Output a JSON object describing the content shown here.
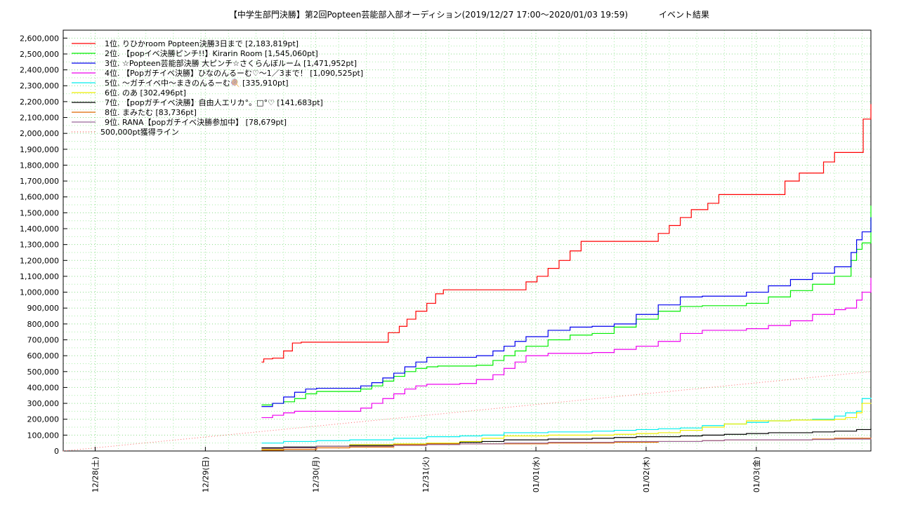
{
  "chart_data": {
    "type": "line",
    "title": "【中学生部門決勝】第2回Popteen芸能部入部オーディション(2019/12/27 17:00〜2020/01/03 19:59)",
    "subtitle": "イベント結果",
    "xlabel": "",
    "ylabel": "",
    "ylim": [
      0,
      2650000
    ],
    "xlim": [
      0,
      7.33
    ],
    "grid": true,
    "legend_position": "top-left",
    "y_ticks": [
      0,
      100000,
      200000,
      300000,
      400000,
      500000,
      600000,
      700000,
      800000,
      900000,
      1000000,
      1100000,
      1200000,
      1300000,
      1400000,
      1500000,
      1600000,
      1700000,
      1800000,
      1900000,
      2000000,
      2100000,
      2200000,
      2300000,
      2400000,
      2500000,
      2600000
    ],
    "y_tick_labels": [
      "0",
      "100,000",
      "200,000",
      "300,000",
      "400,000",
      "500,000",
      "600,000",
      "700,000",
      "800,000",
      "900,000",
      "1,000,000",
      "1,100,000",
      "1,200,000",
      "1,300,000",
      "1,400,000",
      "1,500,000",
      "1,600,000",
      "1,700,000",
      "1,800,000",
      "1,900,000",
      "2,000,000",
      "2,100,000",
      "2,200,000",
      "2,300,000",
      "2,400,000",
      "2,500,000",
      "2,600,000"
    ],
    "x_ticks": [
      0.29,
      1.29,
      2.29,
      3.29,
      4.29,
      5.29,
      6.29
    ],
    "x_tick_labels": [
      "12/28(土)",
      "12/29(日)",
      "12/30(月)",
      "12/31(火)",
      "01/01(水)",
      "01/02(木)",
      "01/03(金)"
    ],
    "series": [
      {
        "name": "1位. りひかroom Popteen決勝3日まで [2,183,819pt]",
        "color": "#ff0000",
        "x": [
          1.8,
          1.82,
          1.9,
          2.0,
          2.08,
          2.16,
          2.9,
          2.95,
          3.05,
          3.12,
          3.2,
          3.3,
          3.38,
          3.45,
          3.52,
          3.58,
          3.65,
          3.7,
          4.2,
          4.3,
          4.4,
          4.5,
          4.6,
          4.7,
          4.78,
          4.83,
          5.0,
          5.2,
          5.4,
          5.5,
          5.6,
          5.7,
          5.85,
          5.95,
          6.05,
          6.2,
          6.4,
          6.55,
          6.68,
          6.8,
          6.9,
          7.0,
          7.08,
          7.18,
          7.26,
          7.33
        ],
        "y": [
          560000,
          580000,
          585000,
          630000,
          680000,
          685000,
          685000,
          745000,
          785000,
          830000,
          880000,
          930000,
          990000,
          1015000,
          1015000,
          1015000,
          1015000,
          1015000,
          1065000,
          1100000,
          1150000,
          1200000,
          1260000,
          1320000,
          1320000,
          1320000,
          1320000,
          1320000,
          1370000,
          1420000,
          1470000,
          1520000,
          1560000,
          1615000,
          1615000,
          1615000,
          1615000,
          1700000,
          1750000,
          1750000,
          1820000,
          1880000,
          1880000,
          1880000,
          2090000,
          2183819
        ]
      },
      {
        "name": "2位. 【popイベ決勝ピンチ!!】Kirarin Room [1,545,060pt]",
        "color": "#00ee00",
        "x": [
          1.8,
          1.9,
          2.0,
          2.1,
          2.2,
          2.3,
          2.6,
          2.7,
          2.8,
          2.9,
          3.0,
          3.1,
          3.2,
          3.3,
          3.4,
          3.5,
          3.6,
          3.75,
          3.9,
          4.0,
          4.1,
          4.2,
          4.4,
          4.6,
          4.8,
          5.0,
          5.2,
          5.4,
          5.6,
          5.8,
          6.0,
          6.2,
          6.4,
          6.6,
          6.8,
          7.0,
          7.08,
          7.15,
          7.2,
          7.25,
          7.33
        ],
        "y": [
          290000,
          300000,
          310000,
          330000,
          360000,
          375000,
          375000,
          390000,
          410000,
          440000,
          470000,
          500000,
          520000,
          530000,
          535000,
          535000,
          535000,
          540000,
          570000,
          600000,
          630000,
          660000,
          700000,
          730000,
          740000,
          780000,
          830000,
          880000,
          910000,
          915000,
          915000,
          930000,
          970000,
          1010000,
          1050000,
          1100000,
          1100000,
          1200000,
          1270000,
          1310000,
          1545060
        ]
      },
      {
        "name": "3位. ☆Popteen芸能部決勝 大ピンチ☆さくらんぼルーム [1,471,952pt]",
        "color": "#0000ee",
        "x": [
          1.8,
          1.9,
          2.0,
          2.1,
          2.2,
          2.3,
          2.6,
          2.7,
          2.8,
          2.9,
          3.0,
          3.1,
          3.2,
          3.3,
          3.4,
          3.5,
          3.6,
          3.75,
          3.9,
          4.0,
          4.1,
          4.2,
          4.4,
          4.6,
          4.8,
          5.0,
          5.2,
          5.4,
          5.6,
          5.8,
          6.0,
          6.2,
          6.4,
          6.6,
          6.8,
          7.0,
          7.08,
          7.15,
          7.2,
          7.25,
          7.33
        ],
        "y": [
          280000,
          300000,
          340000,
          370000,
          390000,
          395000,
          395000,
          410000,
          430000,
          460000,
          490000,
          530000,
          560000,
          590000,
          590000,
          590000,
          590000,
          600000,
          630000,
          660000,
          690000,
          720000,
          760000,
          780000,
          785000,
          800000,
          860000,
          920000,
          970000,
          975000,
          975000,
          1000000,
          1040000,
          1080000,
          1120000,
          1160000,
          1160000,
          1250000,
          1330000,
          1380000,
          1471952
        ]
      },
      {
        "name": "4位. 【Popガチイベ決勝】ひなのんるーむ♡〜1／3まで！ [1,090,525pt]",
        "color": "#ee00ee",
        "x": [
          1.8,
          1.9,
          2.0,
          2.1,
          2.2,
          2.3,
          2.6,
          2.7,
          2.8,
          2.9,
          3.0,
          3.1,
          3.2,
          3.3,
          3.4,
          3.6,
          3.75,
          3.9,
          4.0,
          4.1,
          4.2,
          4.4,
          4.6,
          4.8,
          5.0,
          5.2,
          5.4,
          5.6,
          5.8,
          6.0,
          6.2,
          6.4,
          6.6,
          6.8,
          7.0,
          7.1,
          7.2,
          7.25,
          7.33
        ],
        "y": [
          210000,
          225000,
          240000,
          250000,
          250000,
          250000,
          250000,
          270000,
          300000,
          330000,
          360000,
          390000,
          410000,
          420000,
          420000,
          425000,
          450000,
          480000,
          520000,
          560000,
          600000,
          615000,
          615000,
          620000,
          640000,
          660000,
          690000,
          740000,
          760000,
          760000,
          770000,
          790000,
          820000,
          860000,
          890000,
          900000,
          950000,
          1000000,
          1090525
        ]
      },
      {
        "name": "5位. 〜ガチイベ中〜まきのんるーむ🍭 [335,910pt]",
        "color": "#00eeee",
        "x": [
          1.8,
          2.0,
          2.3,
          2.6,
          3.0,
          3.3,
          3.6,
          3.8,
          4.0,
          4.4,
          4.6,
          4.8,
          5.0,
          5.2,
          5.4,
          5.6,
          5.8,
          6.0,
          6.2,
          6.4,
          6.6,
          6.8,
          7.0,
          7.1,
          7.2,
          7.25,
          7.33
        ],
        "y": [
          50000,
          60000,
          65000,
          70000,
          80000,
          90000,
          95000,
          100000,
          115000,
          120000,
          120000,
          125000,
          130000,
          135000,
          140000,
          145000,
          160000,
          170000,
          180000,
          190000,
          195000,
          200000,
          220000,
          240000,
          250000,
          330000,
          335910
        ]
      },
      {
        "name": "6位. のあ [302,496pt]",
        "color": "#eeee00",
        "x": [
          1.8,
          2.0,
          2.3,
          2.6,
          3.0,
          3.3,
          3.6,
          3.8,
          4.0,
          4.4,
          4.6,
          4.8,
          5.0,
          5.2,
          5.4,
          5.6,
          5.8,
          6.0,
          6.2,
          6.4,
          6.6,
          6.8,
          7.0,
          7.1,
          7.2,
          7.25,
          7.33
        ],
        "y": [
          10000,
          20000,
          30000,
          40000,
          45000,
          50000,
          60000,
          80000,
          95000,
          100000,
          100000,
          100000,
          105000,
          110000,
          115000,
          130000,
          150000,
          170000,
          190000,
          190000,
          195000,
          195000,
          200000,
          210000,
          240000,
          300000,
          302496
        ]
      },
      {
        "name": "7位. 【popガチイベ決勝】自由人エリカ°。□°♡ [141,683pt]",
        "color": "#000000",
        "x": [
          1.8,
          2.0,
          2.3,
          2.6,
          3.0,
          3.3,
          3.6,
          3.8,
          4.0,
          4.4,
          4.6,
          4.8,
          5.0,
          5.2,
          5.4,
          5.6,
          5.8,
          6.0,
          6.2,
          6.4,
          6.6,
          6.8,
          7.0,
          7.2,
          7.33
        ],
        "y": [
          20000,
          25000,
          30000,
          35000,
          40000,
          45000,
          55000,
          60000,
          70000,
          75000,
          75000,
          80000,
          85000,
          90000,
          90000,
          95000,
          100000,
          105000,
          110000,
          115000,
          115000,
          120000,
          125000,
          135000,
          141683
        ]
      },
      {
        "name": "8位. まみたむ [83,736pt]",
        "color": "#dd6600",
        "x": [
          1.8,
          2.0,
          2.3,
          2.6,
          2.8,
          3.0,
          3.3,
          3.6,
          4.0,
          4.4,
          4.8,
          5.0,
          5.4,
          5.8,
          6.0,
          6.4,
          6.8,
          7.0,
          7.33
        ],
        "y": [
          5000,
          10000,
          20000,
          25000,
          25000,
          40000,
          45000,
          45000,
          45000,
          50000,
          50000,
          55000,
          60000,
          65000,
          70000,
          70000,
          75000,
          80000,
          83736
        ]
      },
      {
        "name": "9位. RANA【popガチイベ決勝参加中】 [78,679pt]",
        "color": "#996699",
        "x": [
          1.8,
          2.0,
          2.3,
          2.6,
          3.0,
          3.3,
          3.6,
          4.0,
          4.4,
          4.8,
          5.0,
          5.4,
          5.8,
          6.0,
          6.4,
          6.8,
          7.0,
          7.33
        ],
        "y": [
          15000,
          20000,
          30000,
          30000,
          35000,
          40000,
          45000,
          50000,
          55000,
          55000,
          60000,
          60000,
          65000,
          70000,
          70000,
          72000,
          75000,
          78679
        ]
      },
      {
        "name": "500,000pt獲得ライン",
        "color": "#ff6666",
        "dotted": true,
        "x": [
          0,
          7.33
        ],
        "y": [
          0,
          500000
        ]
      }
    ]
  }
}
